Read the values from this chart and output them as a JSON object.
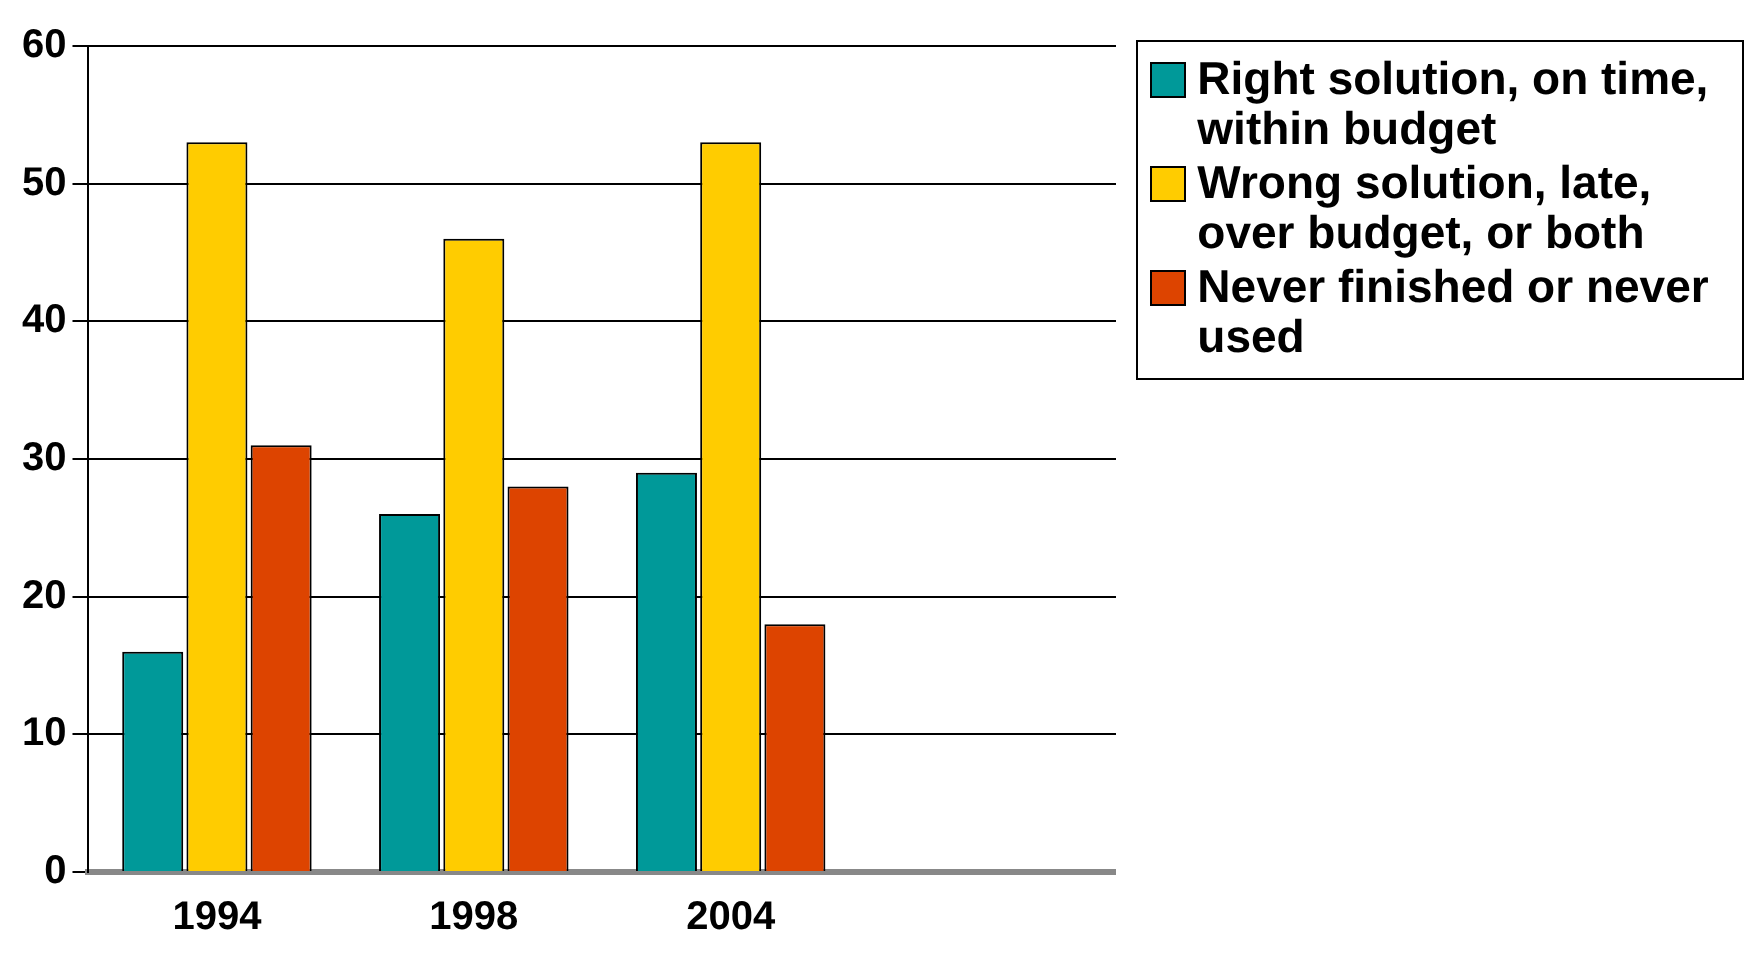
{
  "chart_data": {
    "type": "bar",
    "categories": [
      "1994",
      "1998",
      "2004",
      null
    ],
    "series": [
      {
        "name": "Right solution, on time, within budget",
        "color": "#009999",
        "values": [
          16,
          26,
          29,
          null
        ]
      },
      {
        "name": "Wrong solution, late, over budget, or both",
        "color": "#ffcc00",
        "values": [
          53,
          46,
          53,
          null
        ]
      },
      {
        "name": "Never finished or never used",
        "color": "#dd4400",
        "values": [
          31,
          28,
          18,
          null
        ]
      }
    ],
    "ylim": [
      0,
      60
    ],
    "yticks": [
      0,
      10,
      20,
      30,
      40,
      50,
      60
    ],
    "grid": "y",
    "legend": "right"
  }
}
